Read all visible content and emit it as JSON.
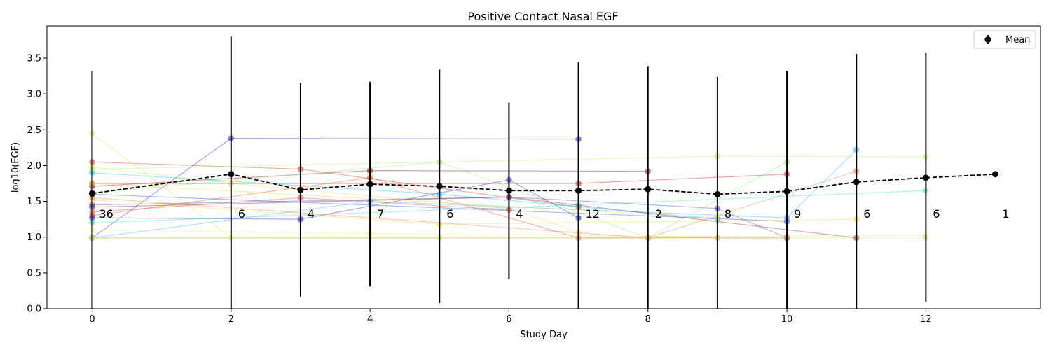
{
  "chart_data": {
    "type": "line",
    "title": "Positive Contact Nasal EGF",
    "xlabel": "Study Day",
    "ylabel": "log10(EGF)",
    "xlim": [
      -0.65,
      13.65
    ],
    "ylim": [
      0.0,
      3.95
    ],
    "xticks": [
      0,
      2,
      4,
      6,
      8,
      10,
      12
    ],
    "yticks": [
      0.0,
      0.5,
      1.0,
      1.5,
      2.0,
      2.5,
      3.0,
      3.5
    ],
    "grid": false,
    "legend": {
      "position": "top-right",
      "entries": [
        "Mean"
      ]
    },
    "mean": {
      "name": "Mean",
      "x": [
        0,
        2,
        3,
        4,
        5,
        6,
        7,
        8,
        9,
        10,
        11,
        12,
        13
      ],
      "y": [
        1.61,
        1.88,
        1.66,
        1.74,
        1.71,
        1.65,
        1.65,
        1.67,
        1.6,
        1.64,
        1.77,
        1.83,
        1.88
      ],
      "err_low": [
        0.0,
        0.0,
        0.17,
        0.31,
        0.08,
        0.41,
        0.0,
        0.0,
        0.0,
        0.0,
        0.0,
        0.09,
        1.88
      ],
      "err_high": [
        3.32,
        3.8,
        3.15,
        3.17,
        3.34,
        2.88,
        3.45,
        3.38,
        3.24,
        3.32,
        3.56,
        3.57,
        1.88
      ],
      "color": "#000000"
    },
    "counts": {
      "x": [
        0,
        2,
        3,
        4,
        5,
        6,
        7,
        8,
        9,
        10,
        11,
        12,
        13
      ],
      "labels": [
        "36",
        "6",
        "4",
        "7",
        "6",
        "4",
        "12",
        "2",
        "8",
        "9",
        "6",
        "6",
        "1"
      ],
      "y": 1.27
    },
    "subjects": [
      {
        "x": [
          0,
          2,
          7
        ],
        "y": [
          0.99,
          2.38,
          2.37
        ],
        "color": "#1f1fd6"
      },
      {
        "x": [
          0,
          3,
          7
        ],
        "y": [
          2.05,
          1.95,
          1.42
        ],
        "color": "#c0392b"
      },
      {
        "x": [
          0,
          4,
          8
        ],
        "y": [
          1.71,
          1.93,
          1.92
        ],
        "color": "#8b1a1a"
      },
      {
        "x": [
          0,
          5,
          9
        ],
        "y": [
          1.9,
          1.6,
          1.25
        ],
        "color": "#00c8e6"
      },
      {
        "x": [
          0,
          6,
          9,
          10
        ],
        "y": [
          1.45,
          1.56,
          1.4,
          0.99
        ],
        "color": "#4040c0"
      },
      {
        "x": [
          0,
          4,
          7,
          10
        ],
        "y": [
          1.3,
          1.83,
          0.99,
          0.99
        ],
        "color": "#e84a1c"
      },
      {
        "x": [
          0,
          2,
          6,
          7
        ],
        "y": [
          1.98,
          1.75,
          1.4,
          1.07
        ],
        "color": "#f7d060"
      },
      {
        "x": [
          0,
          5,
          8,
          10
        ],
        "y": [
          1.62,
          2.05,
          0.99,
          2.05
        ],
        "color": "#9be07a"
      },
      {
        "x": [
          0,
          3,
          6,
          7
        ],
        "y": [
          1.27,
          1.25,
          1.8,
          1.27
        ],
        "color": "#2020c8"
      },
      {
        "x": [
          0,
          4,
          10,
          11
        ],
        "y": [
          0.99,
          1.5,
          1.27,
          2.22
        ],
        "color": "#40b0ff"
      },
      {
        "x": [
          0,
          2,
          5
        ],
        "y": [
          2.45,
          0.99,
          0.99
        ],
        "color": "#c8f060"
      },
      {
        "x": [
          0,
          5,
          11
        ],
        "y": [
          1.52,
          1.18,
          1.25
        ],
        "color": "#f0e040"
      },
      {
        "x": [
          0,
          7,
          10
        ],
        "y": [
          1.75,
          1.75,
          1.88
        ],
        "color": "#d02020"
      },
      {
        "x": [
          0,
          9,
          12
        ],
        "y": [
          1.95,
          2.13,
          2.12
        ],
        "color": "#b8f070"
      },
      {
        "x": [
          0,
          7,
          12
        ],
        "y": [
          1.2,
          1.45,
          1.65
        ],
        "color": "#40e0c0"
      },
      {
        "x": [
          0,
          4,
          11
        ],
        "y": [
          1.1,
          1.05,
          0.99
        ],
        "color": "#f0f070"
      },
      {
        "x": [
          0,
          6,
          11
        ],
        "y": [
          1.42,
          1.56,
          0.99
        ],
        "color": "#7a2040"
      },
      {
        "x": [
          0,
          3,
          6
        ],
        "y": [
          1.35,
          1.55,
          1.38
        ],
        "color": "#e05050"
      },
      {
        "x": [
          0,
          8,
          11
        ],
        "y": [
          1.55,
          0.99,
          1.92
        ],
        "color": "#f08050"
      },
      {
        "x": [
          0,
          12
        ],
        "y": [
          0.99,
          1.02
        ],
        "color": "#ffe080"
      },
      {
        "x": [
          0,
          9
        ],
        "y": [
          0.99,
          0.99
        ],
        "color": "#e0a030"
      },
      {
        "x": [
          0,
          10
        ],
        "y": [
          1.6,
          1.22
        ],
        "color": "#3050e0"
      },
      {
        "x": [
          0,
          9
        ],
        "y": [
          1.75,
          1.27
        ],
        "color": "#e0e050"
      },
      {
        "x": [
          0,
          12
        ],
        "y": [
          0.99,
          0.99
        ],
        "color": "#c0f0a0"
      }
    ]
  }
}
